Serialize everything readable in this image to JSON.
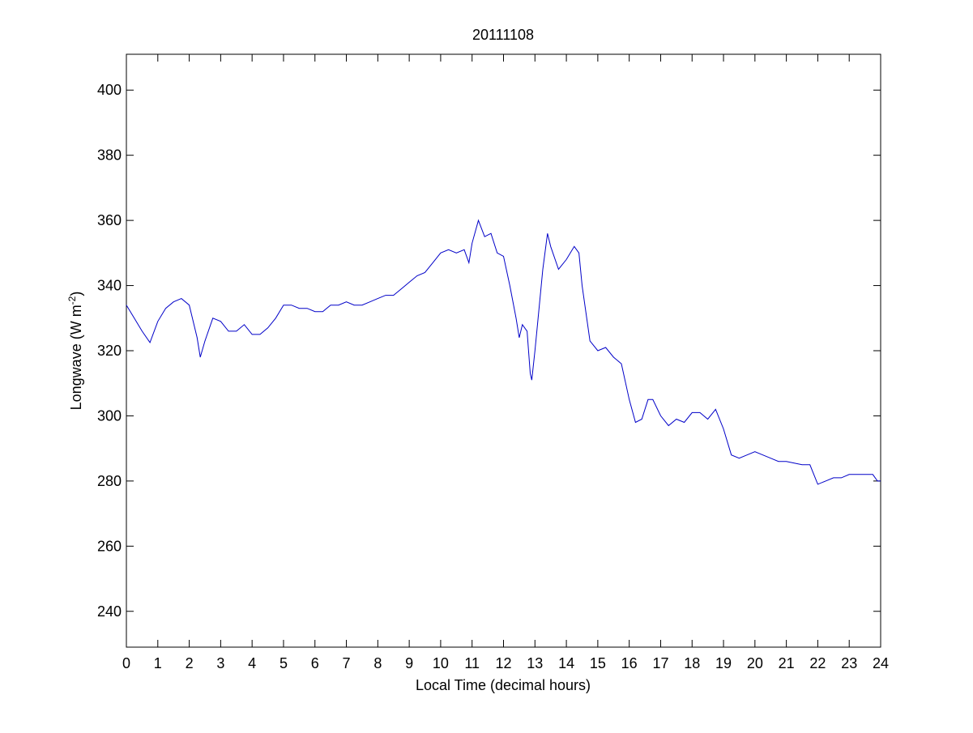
{
  "chart_data": {
    "type": "line",
    "title": "20111108",
    "xlabel": "Local Time (decimal hours)",
    "ylabel": [
      "Longwave (W m",
      "-2",
      ")"
    ],
    "xlim": [
      0,
      24
    ],
    "xticks": [
      0,
      1,
      2,
      3,
      4,
      5,
      6,
      7,
      8,
      9,
      10,
      11,
      12,
      13,
      14,
      15,
      16,
      17,
      18,
      19,
      20,
      21,
      22,
      23,
      24
    ],
    "ylim": [
      229,
      411
    ],
    "yticks": [
      240,
      260,
      280,
      300,
      320,
      340,
      360,
      380,
      400
    ],
    "series": [
      {
        "color": "#0000c8",
        "x": [
          0,
          0.25,
          0.5,
          0.75,
          1,
          1.25,
          1.5,
          1.75,
          2,
          2.25,
          2.35,
          2.5,
          2.75,
          3,
          3.25,
          3.5,
          3.75,
          4,
          4.25,
          4.5,
          4.75,
          5,
          5.25,
          5.5,
          5.75,
          6,
          6.25,
          6.5,
          6.75,
          7,
          7.25,
          7.5,
          7.75,
          8,
          8.25,
          8.5,
          8.75,
          9,
          9.25,
          9.5,
          9.75,
          10,
          10.25,
          10.5,
          10.75,
          10.9,
          11,
          11.2,
          11.4,
          11.6,
          11.8,
          12,
          12.2,
          12.4,
          12.5,
          12.6,
          12.75,
          12.85,
          12.9,
          13,
          13.1,
          13.25,
          13.4,
          13.5,
          13.75,
          14,
          14.25,
          14.4,
          14.5,
          14.75,
          15,
          15.25,
          15.5,
          15.75,
          16,
          16.2,
          16.4,
          16.6,
          16.75,
          17,
          17.25,
          17.5,
          17.75,
          18,
          18.25,
          18.5,
          18.75,
          19,
          19.25,
          19.5,
          19.75,
          20,
          20.25,
          20.5,
          20.75,
          21,
          21.5,
          21.75,
          22,
          22.25,
          22.5,
          22.75,
          23,
          23.25,
          23.5,
          23.75,
          23.9,
          24
        ],
        "values": [
          334,
          330,
          326,
          322.5,
          329,
          333,
          335,
          336,
          334,
          324,
          318,
          323,
          330,
          329,
          326,
          326,
          328,
          325,
          325,
          327,
          330,
          334,
          334,
          333,
          333,
          332,
          332,
          334,
          334,
          335,
          334,
          334,
          335,
          336,
          337,
          337,
          339,
          341,
          343,
          344,
          347,
          350,
          351,
          350,
          351,
          347,
          353,
          360,
          355,
          356,
          350,
          349,
          340,
          330,
          324,
          328,
          326,
          313,
          311,
          320,
          330,
          345,
          356,
          352,
          345,
          348,
          352,
          350,
          340,
          323,
          320,
          321,
          318,
          316,
          305,
          298,
          299,
          305,
          305,
          300,
          297,
          299,
          298,
          301,
          301,
          299,
          302,
          296,
          288,
          287,
          288,
          289,
          288,
          287,
          286,
          286,
          285,
          285,
          279,
          280,
          281,
          281,
          282,
          282,
          282,
          282,
          280,
          280
        ]
      }
    ]
  }
}
